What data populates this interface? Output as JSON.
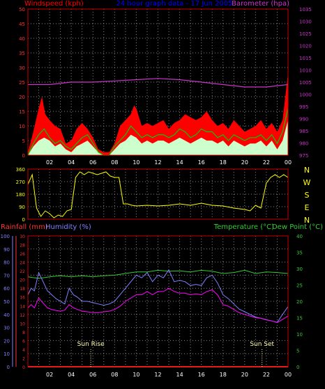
{
  "colors": {
    "background": "#000000",
    "frame": "#cc0000",
    "grid": "#888888",
    "windspeed": "#ff0000",
    "gust_fill": "#ff0000",
    "avg_fill": "#ffffff",
    "avg_line": "#00cc00",
    "pale_fill": "#ccffcc",
    "barometer": "#cc33cc",
    "direction": "#ffff00",
    "title": "#0000ff",
    "rain": "#ff3333",
    "humidity": "#8080ff",
    "temperature": "#33cc33",
    "dewpoint": "#ff00ff",
    "sun": "#ffffaa",
    "tick_text": "#ffffff"
  },
  "chart_data": [
    {
      "id": "wind",
      "type": "area",
      "title": "24 hour graph data - 17 Jun 2005",
      "ylabel_left": "Windspeed (kph)",
      "ylabel_right": "Barometer (hpa)",
      "x_ticks": [
        "02",
        "04",
        "06",
        "08",
        "10",
        "12",
        "14",
        "16",
        "18",
        "20",
        "22",
        "00"
      ],
      "ylim_left": [
        0,
        50
      ],
      "ylim_right": [
        975,
        1035
      ],
      "y_ticks_left": [
        "50",
        "45",
        "40",
        "35",
        "30",
        "25",
        "20",
        "15",
        "10",
        "5",
        "0"
      ],
      "y_ticks_right": [
        "1035",
        "1030",
        "1025",
        "1020",
        "1015",
        "1010",
        "1005",
        "1000",
        "995",
        "990",
        "985",
        "980",
        "975"
      ],
      "grid": true,
      "series": [
        {
          "name": "gust",
          "kind": "fill",
          "x": [
            0,
            0.5,
            1,
            1.3,
            1.6,
            2,
            2.5,
            3,
            3.5,
            4,
            4.5,
            5,
            5.5,
            6,
            6.5,
            7,
            7.5,
            8,
            8.5,
            9,
            9.5,
            9.8,
            10,
            10.5,
            11,
            11.5,
            12,
            12.5,
            13,
            13.5,
            14,
            14.5,
            15,
            15.5,
            16,
            16.5,
            17,
            17.5,
            18,
            18.5,
            19,
            19.5,
            20,
            20.5,
            21,
            21.5,
            22,
            22.5,
            23,
            23.5,
            24
          ],
          "values": [
            1,
            8,
            16,
            20,
            14,
            12,
            10,
            9,
            4,
            5,
            9,
            11,
            9,
            6,
            2,
            1,
            1,
            4,
            10,
            12,
            14,
            17,
            16,
            10,
            11,
            10,
            11,
            12,
            9,
            11,
            12,
            14,
            13,
            12,
            13,
            15,
            12,
            10,
            11,
            9,
            12,
            10,
            8,
            9,
            10,
            12,
            9,
            11,
            8,
            12,
            28
          ]
        },
        {
          "name": "average",
          "kind": "fill",
          "x": [
            0,
            0.5,
            1,
            1.5,
            2,
            2.5,
            3,
            3.5,
            4,
            4.5,
            5,
            5.5,
            6,
            6.5,
            7,
            7.5,
            8,
            8.5,
            9,
            9.5,
            10,
            10.5,
            11,
            11.5,
            12,
            12.5,
            13,
            13.5,
            14,
            14.5,
            15,
            15.5,
            16,
            16.5,
            17,
            17.5,
            18,
            18.5,
            19,
            19.5,
            20,
            20.5,
            21,
            21.5,
            22,
            22.5,
            23,
            23.5,
            24
          ],
          "values": [
            0,
            3,
            5,
            6,
            5,
            3,
            4,
            2,
            1,
            3,
            4,
            5,
            3,
            1,
            0,
            0,
            2,
            4,
            5,
            7,
            6,
            4,
            5,
            4,
            5,
            5,
            4,
            5,
            6,
            5,
            4,
            5,
            6,
            5,
            5,
            4,
            5,
            3,
            5,
            4,
            3,
            4,
            4,
            5,
            3,
            5,
            2,
            5,
            12
          ]
        },
        {
          "name": "avg_line",
          "kind": "line",
          "x": [
            0,
            0.5,
            1,
            1.5,
            2,
            2.5,
            3,
            3.5,
            4,
            4.5,
            5,
            5.5,
            6,
            6.5,
            7,
            7.5,
            8,
            8.5,
            9,
            9.5,
            10,
            10.5,
            11,
            11.5,
            12,
            12.5,
            13,
            13.5,
            14,
            14.5,
            15,
            15.5,
            16,
            16.5,
            17,
            17.5,
            18,
            18.5,
            19,
            19.5,
            20,
            20.5,
            21,
            21.5,
            22,
            22.5,
            23,
            23.5,
            24
          ],
          "values": [
            0,
            4,
            7,
            9,
            6,
            4,
            5,
            3,
            2,
            4,
            6,
            7,
            4,
            1,
            0,
            0,
            3,
            5,
            7,
            10,
            8,
            6,
            7,
            6,
            7,
            7,
            6,
            7,
            9,
            8,
            6,
            7,
            9,
            8,
            8,
            6,
            7,
            5,
            7,
            6,
            5,
            6,
            6,
            7,
            5,
            7,
            4,
            8,
            16
          ]
        },
        {
          "name": "barometer",
          "kind": "line",
          "axis": "right",
          "x": [
            0,
            2,
            4,
            6,
            8,
            10,
            12,
            14,
            16,
            18,
            20,
            22,
            24
          ],
          "values": [
            1004,
            1004,
            1005,
            1005,
            1005.5,
            1006,
            1006.5,
            1006,
            1005,
            1004,
            1003,
            1003,
            1004
          ]
        }
      ]
    },
    {
      "id": "direction",
      "type": "line",
      "ylim": [
        0,
        360
      ],
      "y_ticks": [
        "360",
        "270",
        "180",
        "90",
        "0"
      ],
      "compass_labels": [
        "N",
        "W",
        "S",
        "E",
        "N"
      ],
      "grid": true,
      "series": [
        {
          "name": "direction",
          "kind": "line",
          "x": [
            0,
            0.4,
            0.8,
            1.2,
            1.6,
            2,
            2.4,
            2.8,
            3.2,
            3.6,
            4,
            4.4,
            4.8,
            5.2,
            5.6,
            6,
            6.4,
            6.8,
            7.2,
            7.6,
            8,
            8.4,
            8.8,
            9.2,
            9.6,
            10,
            11,
            12,
            13,
            14,
            15,
            16,
            17,
            18,
            19,
            20,
            20.5,
            21,
            21.5,
            22,
            22.4,
            22.8,
            23.2,
            23.6,
            24
          ],
          "values": [
            250,
            320,
            80,
            20,
            60,
            40,
            10,
            30,
            20,
            60,
            70,
            300,
            340,
            320,
            340,
            330,
            320,
            330,
            340,
            310,
            300,
            300,
            110,
            110,
            100,
            95,
            100,
            95,
            100,
            110,
            100,
            115,
            100,
            95,
            80,
            70,
            60,
            100,
            80,
            260,
            300,
            320,
            300,
            320,
            300
          ]
        }
      ]
    },
    {
      "id": "temp",
      "type": "line",
      "ylabel_rain": "Rainfall (mm)",
      "ylabel_humidity": "Humidity (%)",
      "ylabel_temp": "Temperature (°C)",
      "ylabel_dew": "Dew Point (°C)",
      "x_ticks": [
        "02",
        "04",
        "06",
        "08",
        "10",
        "12",
        "14",
        "16",
        "18",
        "20",
        "22",
        "00"
      ],
      "humidity_ticks": [
        "100",
        "90",
        "80",
        "70",
        "60",
        "50",
        "40",
        "30",
        "20",
        "10",
        "0"
      ],
      "rain_ticks": [
        "30",
        "28",
        "26",
        "24",
        "22",
        "20",
        "18",
        "16",
        "14",
        "12",
        "10",
        "8",
        "6",
        "4",
        "2",
        "0"
      ],
      "temp_ticks": [
        "40",
        "35",
        "30",
        "25",
        "20",
        "15",
        "10",
        "5",
        "0"
      ],
      "humidity_lim": [
        0,
        100
      ],
      "temp_lim": [
        0,
        40
      ],
      "grid": true,
      "sunrise_label": "Sun Rise",
      "sunset_label": "Sun Set",
      "sunrise_x": 5.8,
      "sunset_x": 21.6,
      "series": [
        {
          "name": "temperature",
          "kind": "line",
          "x": [
            0,
            1,
            2,
            3,
            4,
            5,
            6,
            7,
            8,
            9,
            10,
            11,
            12,
            13,
            14,
            15,
            16,
            17,
            18,
            19,
            20,
            21,
            22,
            23,
            24
          ],
          "values": [
            27.5,
            27,
            27.5,
            27.8,
            27.5,
            27.8,
            27.5,
            27.8,
            28,
            28.5,
            29,
            29,
            29.5,
            29.2,
            29.3,
            29,
            29.5,
            29.2,
            28.5,
            28.8,
            29.5,
            28.5,
            29,
            28.8,
            28.5
          ]
        },
        {
          "name": "humidity",
          "kind": "line",
          "x": [
            0,
            0.3,
            0.6,
            1,
            1.4,
            1.8,
            2.2,
            2.6,
            3,
            3.4,
            3.8,
            4.2,
            4.6,
            5,
            5.5,
            6,
            6.5,
            7,
            7.5,
            8,
            8.5,
            9,
            9.5,
            10,
            10.5,
            11,
            11.5,
            12,
            12.5,
            13,
            13.5,
            14,
            14.5,
            15,
            15.5,
            16,
            16.5,
            17,
            17.5,
            18,
            18.5,
            19,
            19.5,
            20,
            20.5,
            21,
            21.5,
            22,
            22.5,
            23,
            23.5,
            24
          ],
          "values": [
            55,
            60,
            58,
            72,
            65,
            58,
            55,
            52,
            50,
            48,
            60,
            55,
            53,
            50,
            50,
            49,
            48,
            47,
            48,
            50,
            55,
            60,
            65,
            70,
            68,
            72,
            65,
            70,
            68,
            74,
            65,
            66,
            65,
            62,
            63,
            62,
            68,
            70,
            64,
            55,
            52,
            48,
            44,
            42,
            40,
            38,
            37,
            36,
            35,
            34,
            40,
            46
          ]
        },
        {
          "name": "dewpoint",
          "kind": "line",
          "x": [
            0,
            0.3,
            0.6,
            1,
            1.4,
            1.8,
            2.2,
            2.6,
            3,
            3.4,
            3.8,
            4.2,
            4.6,
            5,
            5.5,
            6,
            6.5,
            7,
            7.5,
            8,
            8.5,
            9,
            9.5,
            10,
            10.5,
            11,
            11.5,
            12,
            12.5,
            13,
            13.5,
            14,
            14.5,
            15,
            15.5,
            16,
            16.5,
            17,
            17.5,
            18,
            18.5,
            19,
            19.5,
            20,
            20.5,
            21,
            21.5,
            22,
            22.5,
            23,
            23.5,
            24
          ],
          "values": [
            18,
            19,
            18,
            21,
            19.5,
            18,
            17.5,
            17.2,
            17,
            17.3,
            19,
            18,
            17.5,
            17,
            16.8,
            16.5,
            16.5,
            16.8,
            17,
            17.5,
            18.5,
            20,
            21,
            22,
            22,
            23,
            22,
            23,
            23,
            24,
            23,
            22.5,
            22.5,
            22,
            22.3,
            22,
            23,
            23.5,
            22,
            19,
            18.5,
            17.5,
            16.5,
            16,
            15.5,
            15,
            14.8,
            14.3,
            14,
            13.5,
            14.5,
            15.5
          ]
        },
        {
          "name": "rainfall",
          "kind": "line",
          "axis": "rain",
          "x": [
            0,
            24
          ],
          "values": [
            0,
            0
          ]
        }
      ]
    }
  ]
}
